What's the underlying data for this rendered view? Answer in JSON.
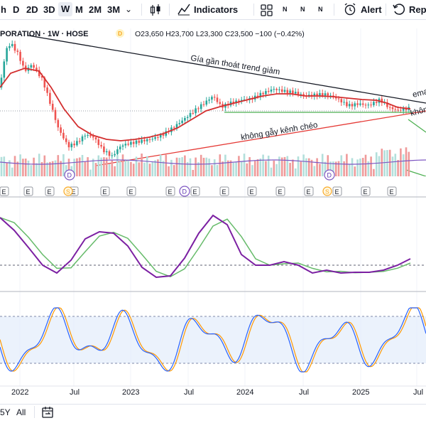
{
  "toolbar": {
    "timeframes": [
      "h",
      "D",
      "2D",
      "3D",
      "W",
      "M",
      "2M",
      "3M"
    ],
    "active_timeframe": "W",
    "indicators_label": "Indicators",
    "alert_label": "Alert",
    "replay_label": "Repl",
    "chevron_glyph": "⌄",
    "n_glyph": "N"
  },
  "legend": {
    "title": "PORATION · 1W · HOSE",
    "badge": "D",
    "ohlc": "O23,650 H23,700 L23,300 C23,500 −100 (−0.42%)"
  },
  "annotations": {
    "trend_down": "Gía gần thoát trend giảm",
    "channel": "không gẫy kênh chéo",
    "ema_cut": "ema",
    "khong_cut": "khôn"
  },
  "events": {
    "earnings": "E",
    "dividend": "D",
    "split": "S"
  },
  "x_axis": {
    "labels": [
      "2022",
      "Jul",
      "2023",
      "Jul",
      "2024",
      "Jul",
      "2025",
      "Jul"
    ]
  },
  "bottom": {
    "ranges": [
      "5Y",
      "All"
    ]
  },
  "colors": {
    "candle_up": "#26a69a",
    "candle_down": "#ef5350",
    "ema": "#d32f2f",
    "trendline": "#131722",
    "support": "#4caf50",
    "channel": "#e53935",
    "macd": "#7b1fa2",
    "signal": "#66bb6a",
    "stoch_k": "#2962ff",
    "stoch_d": "#ff9800",
    "stoch_band": "#e3ecfb",
    "volume": "#7e57c2"
  }
}
